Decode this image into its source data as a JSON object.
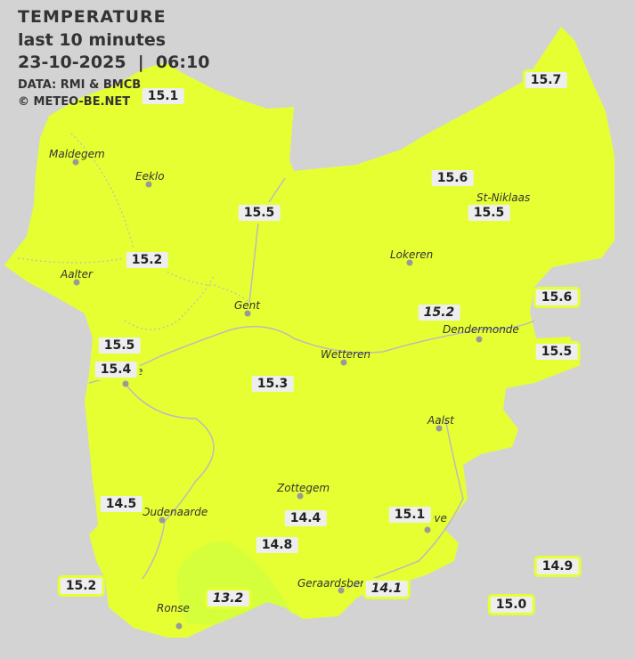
{
  "header": {
    "title": "TEMPERATURE",
    "subtitle": "last 10 minutes",
    "datetime": "23-10-2025  |  06:10",
    "source": "DATA: RMI & BMCB",
    "copyright": "© METEO-BE.NET"
  },
  "colors": {
    "background": "#d3d3d3",
    "region_fill": "#e5ff33",
    "cool_zone": "#d4ff3a",
    "label_bg": "#eeeeee"
  },
  "cities": [
    {
      "name": "Maldegem"
    },
    {
      "name": "Eeklo"
    },
    {
      "name": "Aalter"
    },
    {
      "name": "Gent"
    },
    {
      "name": "Lokeren"
    },
    {
      "name": "St-Niklaas"
    },
    {
      "name": "Dendermonde"
    },
    {
      "name": "Wetteren"
    },
    {
      "name": "Aalst"
    },
    {
      "name": "Zottegem"
    },
    {
      "name": "Oudenaarde"
    },
    {
      "name": "Ronse"
    },
    {
      "name": "Geraardsbergen"
    },
    {
      "name": "e"
    },
    {
      "name": "ove"
    }
  ],
  "readings": [
    {
      "value": "15.1",
      "italic": false
    },
    {
      "value": "15.7",
      "italic": false
    },
    {
      "value": "15.6",
      "italic": false
    },
    {
      "value": "15.5",
      "italic": false
    },
    {
      "value": "15.5",
      "italic": false
    },
    {
      "value": "15.2",
      "italic": false
    },
    {
      "value": "15.6",
      "italic": false
    },
    {
      "value": "15.2",
      "italic": true
    },
    {
      "value": "15.5",
      "italic": false
    },
    {
      "value": "15.5",
      "italic": false
    },
    {
      "value": "15.4",
      "italic": false
    },
    {
      "value": "15.3",
      "italic": false
    },
    {
      "value": "14.5",
      "italic": false
    },
    {
      "value": "14.4",
      "italic": false
    },
    {
      "value": "15.1",
      "italic": false
    },
    {
      "value": "14.8",
      "italic": false
    },
    {
      "value": "14.9",
      "italic": false
    },
    {
      "value": "15.2",
      "italic": false
    },
    {
      "value": "13.2",
      "italic": true
    },
    {
      "value": "14.1",
      "italic": true
    },
    {
      "value": "15.0",
      "italic": false
    }
  ]
}
